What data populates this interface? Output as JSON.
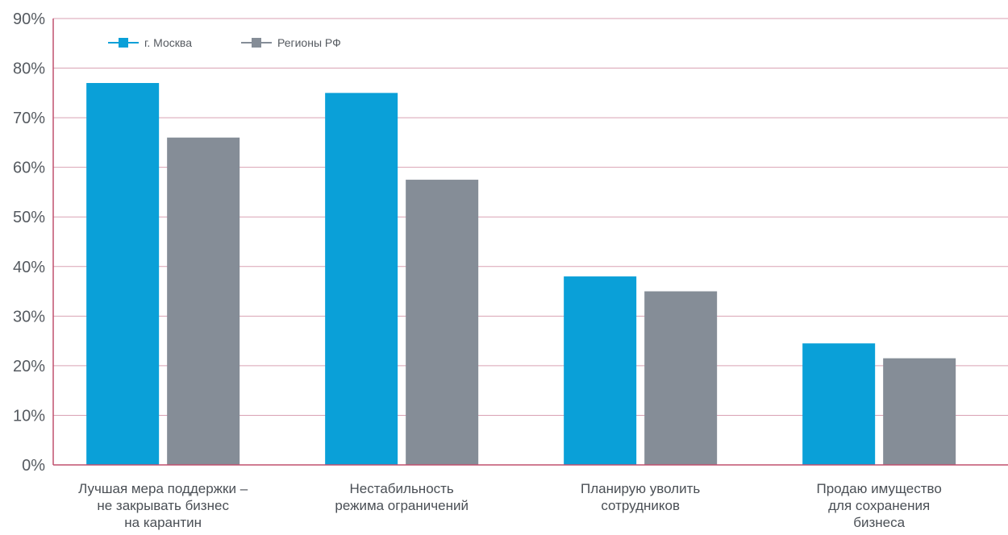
{
  "chart_data": {
    "type": "bar",
    "title": "",
    "xlabel": "",
    "ylabel": "",
    "ylim": [
      0,
      90
    ],
    "y_ticks": [
      "0%",
      "10%",
      "20%",
      "30%",
      "40%",
      "50%",
      "60%",
      "70%",
      "80%",
      "90%"
    ],
    "categories": [
      [
        "Лучшая мера поддержки –",
        "не закрывать бизнес",
        "на карантин"
      ],
      [
        "Нестабильность",
        "режима ограничений"
      ],
      [
        "Планирую уволить",
        "сотрудников"
      ],
      [
        "Продаю имущество",
        "для сохранения",
        "бизнеса"
      ]
    ],
    "series": [
      {
        "name": "г. Москва",
        "color": "#0aa0d8",
        "values": [
          77,
          75,
          38,
          24.5
        ]
      },
      {
        "name": "Регионы РФ",
        "color": "#858d97",
        "values": [
          66,
          57.5,
          35,
          21.5
        ]
      }
    ],
    "grid": true,
    "grid_color": "#d9a2b3",
    "axis_color": "#c0506f",
    "legend_position": "top-left"
  }
}
